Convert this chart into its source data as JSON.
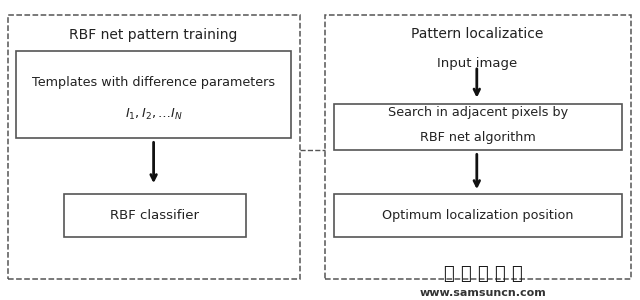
{
  "bg_color": "#ffffff",
  "border_color": "#555555",
  "text_color": "#222222",
  "title_left": "RBF net pattern training",
  "title_right": "Pattern localizatice",
  "left_box1_line1": "Templates with difference parameters",
  "left_box1_line2": "$I_1, I_2, \\ldots I_N$",
  "left_box2_text": "RBF classifier",
  "right_text_top": "Input image",
  "right_box1_line1": "Search in adjacent pixels by",
  "right_box1_line2": "RBF net algorithm",
  "right_box2_text": "Optimum localization position",
  "watermark_zh": "三 姻 森 科 技",
  "watermark_en": "www.samsuncn.com",
  "fig_width": 6.4,
  "fig_height": 3.0,
  "dpi": 100
}
